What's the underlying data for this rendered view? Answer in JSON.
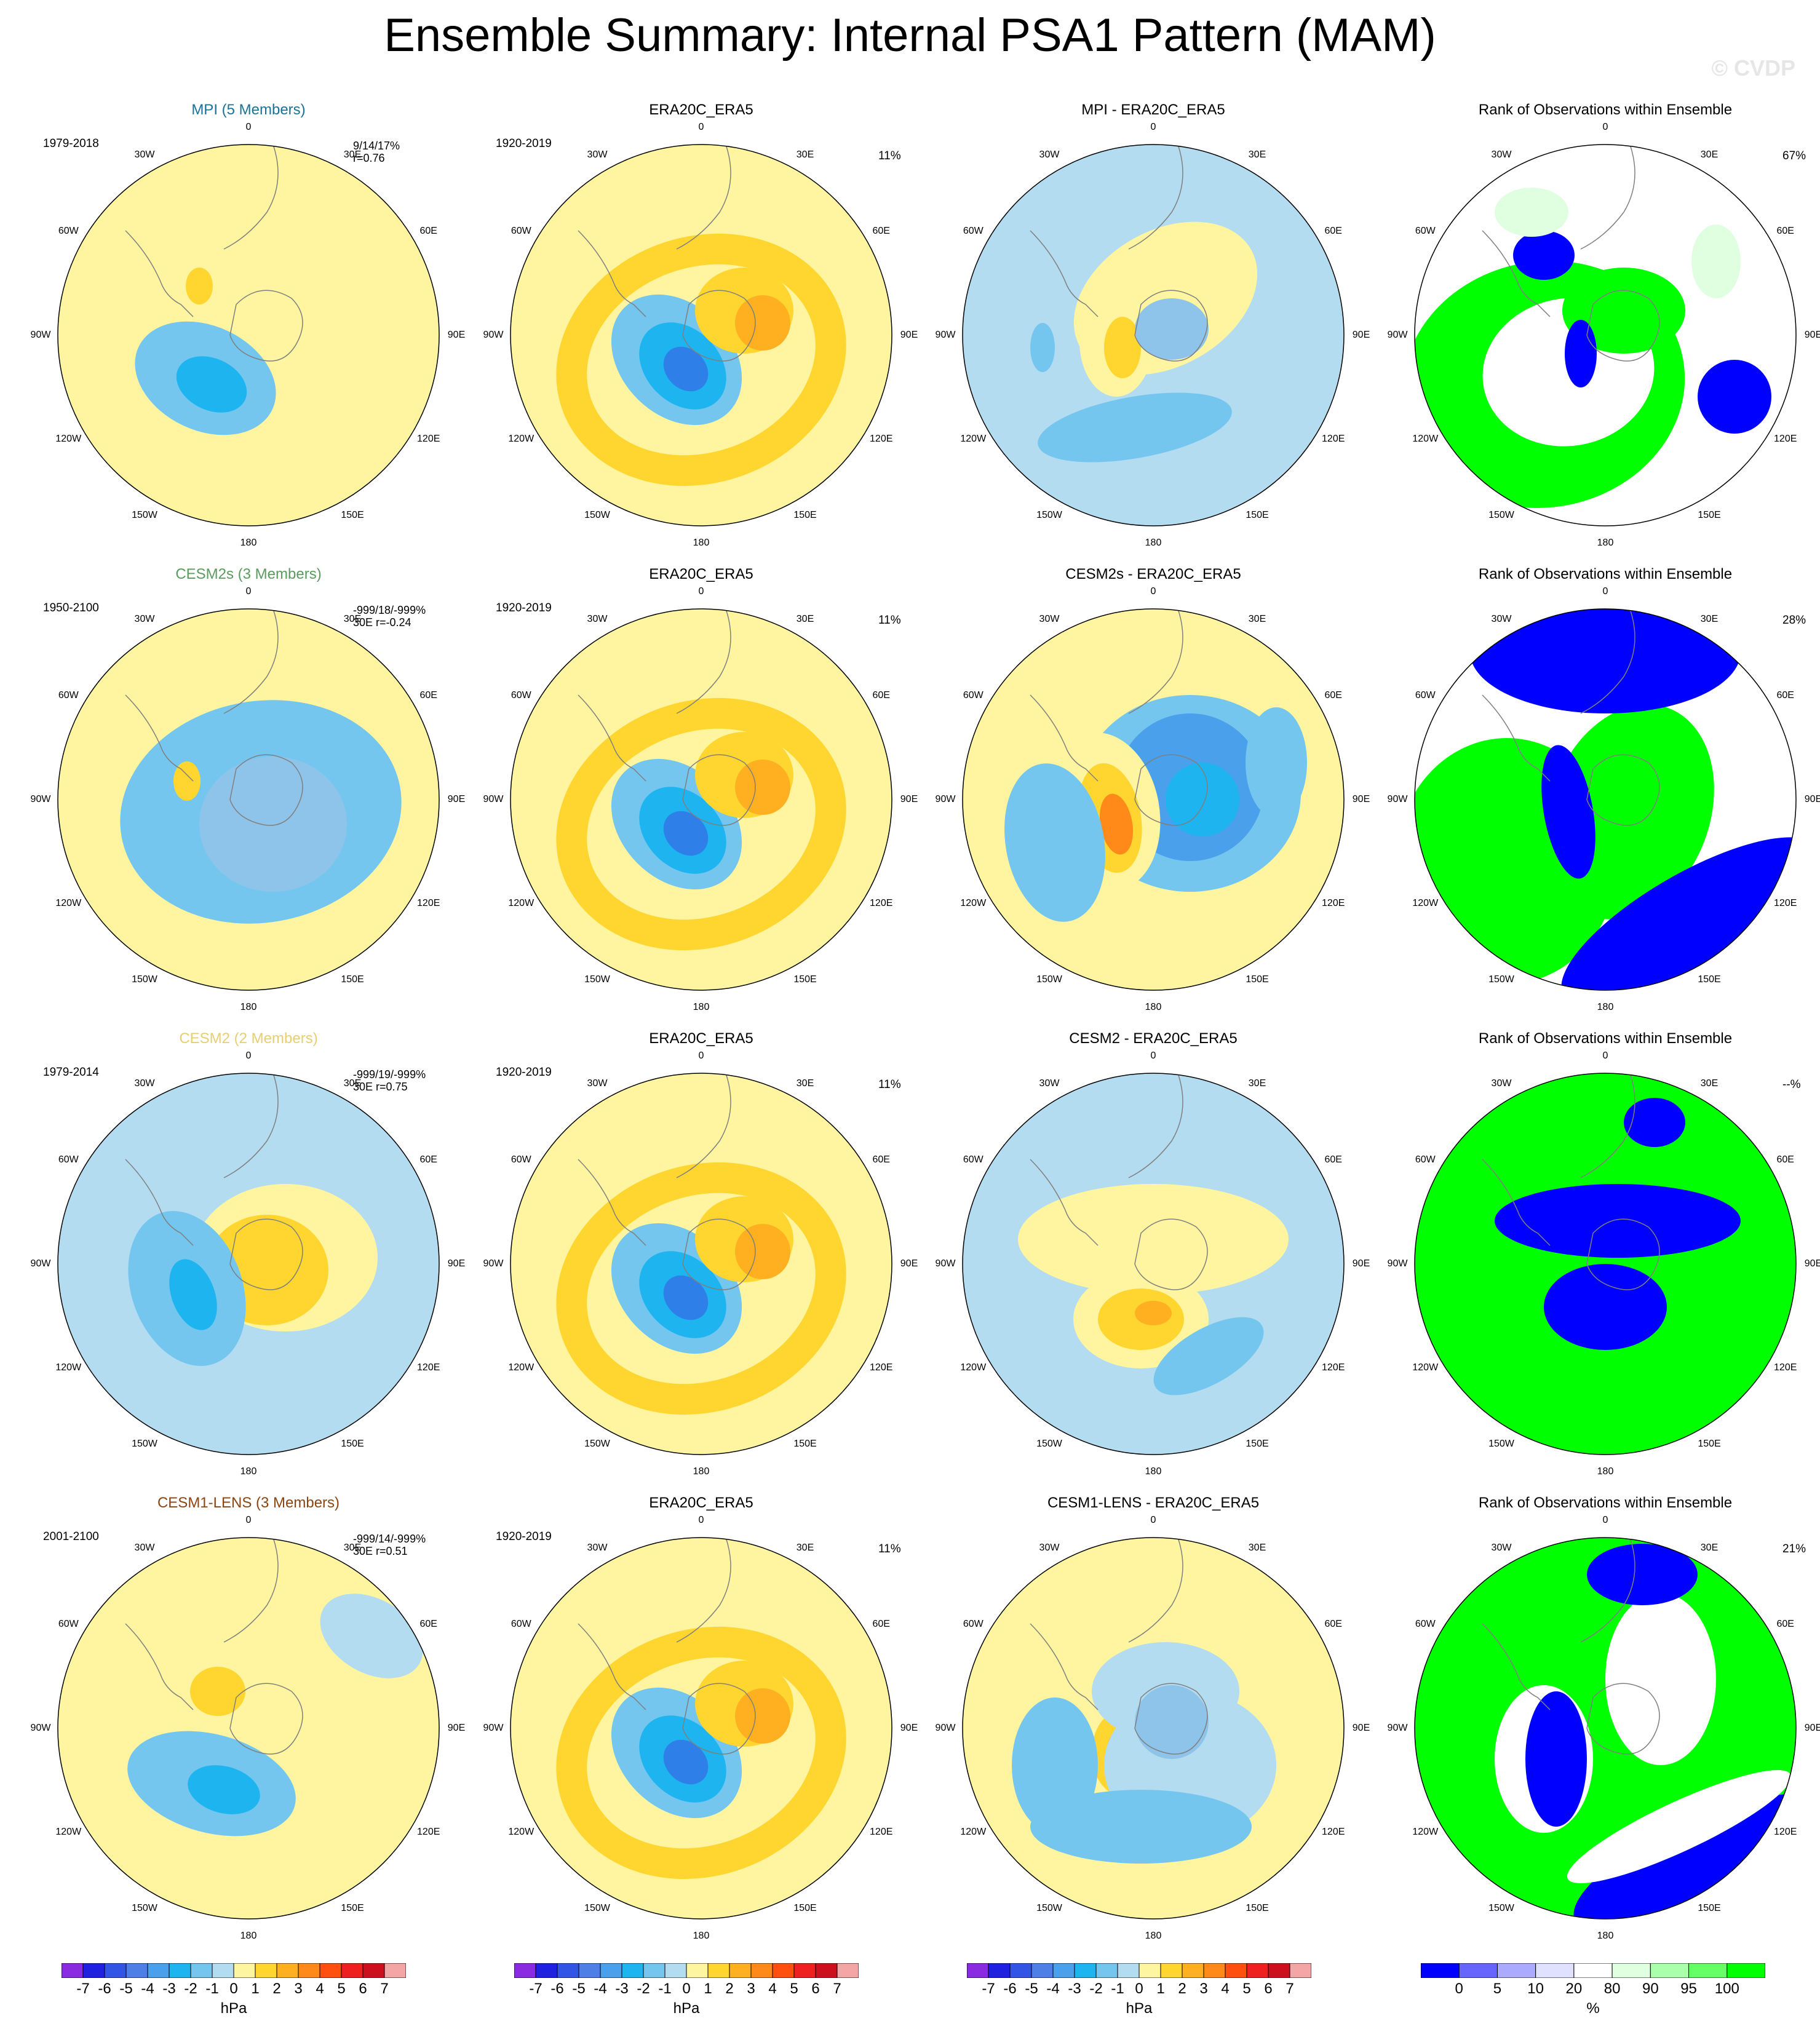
{
  "title": "Ensemble Summary: Internal PSA1 Pattern (MAM)",
  "watermark": "© CVDP",
  "colors": {
    "model_title_colors": [
      "#1a7296",
      "#5a9b5e",
      "#e6cf73",
      "#8b4513"
    ],
    "ocean_fill": "#b3dcf0",
    "land_outline": "#7f7f7f"
  },
  "longitude_labels": [
    "0",
    "30E",
    "60E",
    "90E",
    "120E",
    "150E",
    "180",
    "150W",
    "120W",
    "90W",
    "60W",
    "30W"
  ],
  "rows": [
    {
      "model_title": "MPI (5 Members)",
      "model_period": "1979-2018",
      "model_stats": [
        "9/14/17%",
        "r=0.76"
      ],
      "obs_title": "ERA20C_ERA5",
      "obs_period": "1920-2019",
      "obs_pct": "11%",
      "diff_title": "MPI - ERA20C_ERA5",
      "rank_title": "Rank of Observations within Ensemble",
      "rank_pct": "67%"
    },
    {
      "model_title": "CESM2s (3 Members)",
      "model_period": "1950-2100",
      "model_stats": [
        "-999/18/-999%",
        "30E r=-0.24"
      ],
      "obs_title": "ERA20C_ERA5",
      "obs_period": "1920-2019",
      "obs_pct": "11%",
      "diff_title": "CESM2s - ERA20C_ERA5",
      "rank_title": "Rank of Observations within Ensemble",
      "rank_pct": "28%"
    },
    {
      "model_title": "CESM2 (2 Members)",
      "model_period": "1979-2014",
      "model_stats": [
        "-999/19/-999%",
        "30E r=0.75"
      ],
      "obs_title": "ERA20C_ERA5",
      "obs_period": "1920-2019",
      "obs_pct": "11%",
      "diff_title": "CESM2 - ERA20C_ERA5",
      "rank_title": "Rank of Observations within Ensemble",
      "rank_pct": "--%"
    },
    {
      "model_title": "CESM1-LENS (3 Members)",
      "model_period": "2001-2100",
      "model_stats": [
        "-999/14/-999%",
        "30E r=0.51"
      ],
      "obs_title": "ERA20C_ERA5",
      "obs_period": "1920-2019",
      "obs_pct": "11%",
      "diff_title": "CESM1-LENS - ERA20C_ERA5",
      "rank_title": "Rank of Observations within Ensemble",
      "rank_pct": "21%"
    }
  ],
  "colorbar_hpa": {
    "labels": [
      "-7",
      "-6",
      "-5",
      "-4",
      "-3",
      "-2",
      "-1",
      "0",
      "1",
      "2",
      "3",
      "4",
      "5",
      "6",
      "7"
    ],
    "unit": "hPa",
    "colors": [
      "#8a2be2",
      "#2020e0",
      "#3355e6",
      "#4d7fe6",
      "#4aa0ea",
      "#1eb4f0",
      "#74c6ef",
      "#b3dcf0",
      "#fff5a0",
      "#ffd630",
      "#ffb020",
      "#ff8a1a",
      "#ff5010",
      "#ee2020",
      "#cc1020",
      "#f4a6a6"
    ]
  },
  "colorbar_pct": {
    "labels": [
      "0",
      "5",
      "10",
      "20",
      "80",
      "90",
      "95",
      "100"
    ],
    "unit": "%",
    "colors": [
      "#0000ff",
      "#6666ff",
      "#aaaaff",
      "#e0e0ff",
      "#ffffff",
      "#e0ffe0",
      "#aaffaa",
      "#66ff66",
      "#00ff00"
    ]
  }
}
